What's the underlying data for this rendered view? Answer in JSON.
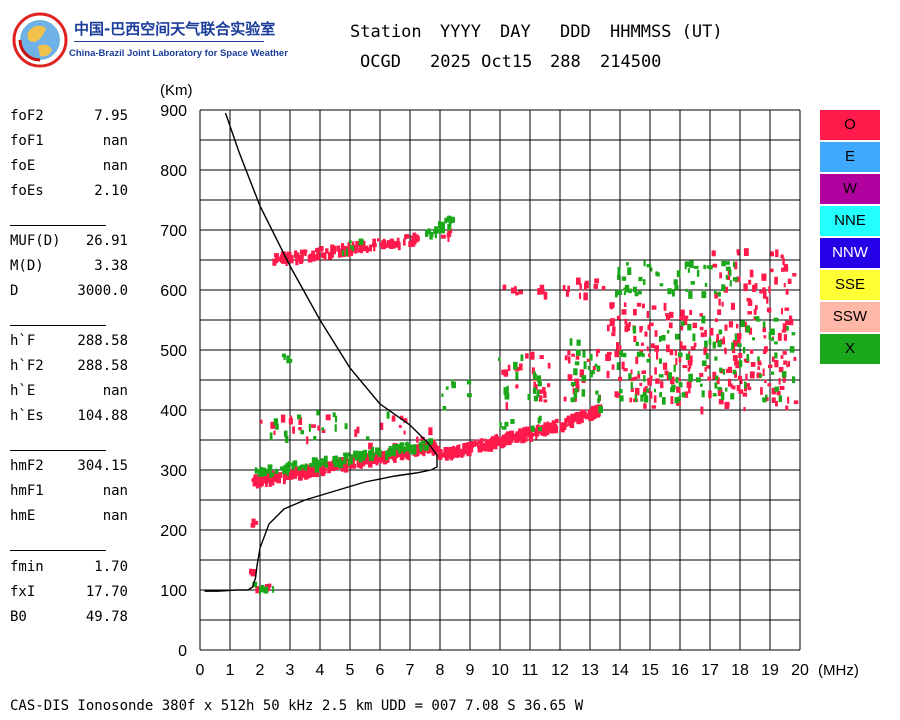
{
  "logo": {
    "cn": "中国-巴西空间天气联合实验室",
    "en": "China-Brazil Joint Laboratory for Space Weather"
  },
  "header": {
    "line1": [
      "Station",
      "YYYY",
      "DAY",
      "DDD",
      "HHMMSS (UT)"
    ],
    "line2": [
      "OCGD",
      "2025 Oct15",
      "288",
      "214500"
    ]
  },
  "parameters": {
    "group1": [
      {
        "label": "foF2",
        "value": "7.95"
      },
      {
        "label": "foF1",
        "value": "nan"
      },
      {
        "label": "foE",
        "value": "nan"
      },
      {
        "label": "foEs",
        "value": "2.10"
      }
    ],
    "group2": [
      {
        "label": "MUF(D)",
        "value": "26.91"
      },
      {
        "label": "M(D)",
        "value": "3.38"
      },
      {
        "label": "D",
        "value": "3000.0"
      }
    ],
    "group3": [
      {
        "label": "h`F",
        "value": "288.58"
      },
      {
        "label": "h`F2",
        "value": "288.58"
      },
      {
        "label": "h`E",
        "value": "nan"
      },
      {
        "label": "h`Es",
        "value": "104.88"
      }
    ],
    "group4": [
      {
        "label": "hmF2",
        "value": "304.15"
      },
      {
        "label": "hmF1",
        "value": "nan"
      },
      {
        "label": "hmE",
        "value": "nan"
      }
    ],
    "group5": [
      {
        "label": "fmin",
        "value": "1.70"
      },
      {
        "label": "fxI",
        "value": "17.70"
      },
      {
        "label": "B0",
        "value": "49.78"
      }
    ]
  },
  "legend": [
    {
      "label": "O",
      "color": "#ff1a4b"
    },
    {
      "label": "E",
      "color": "#3fa8ff"
    },
    {
      "label": "W",
      "color": "#b0009e"
    },
    {
      "label": "NNE",
      "color": "#22ffff"
    },
    {
      "label": "NNW",
      "color": "#2400e6"
    },
    {
      "label": "SSE",
      "color": "#ffff33"
    },
    {
      "label": "SSW",
      "color": "#ffb8a8"
    },
    {
      "label": "X",
      "color": "#1aa81a"
    }
  ],
  "footer": "CAS-DIS Ionosonde 380f x 512h 50 kHz 2.5 km UDD = 007 7.08 S 36.65 W",
  "chart_data": {
    "type": "scatter",
    "title": "",
    "xlabel": "(MHz)",
    "ylabel": "(Km)",
    "xlim": [
      0,
      20
    ],
    "ylim": [
      0,
      900
    ],
    "xticks": [
      0,
      1,
      2,
      3,
      4,
      5,
      6,
      7,
      8,
      9,
      10,
      11,
      12,
      13,
      14,
      15,
      16,
      17,
      18,
      19,
      20
    ],
    "yticks": [
      0,
      100,
      200,
      300,
      400,
      500,
      600,
      700,
      800,
      900
    ],
    "grid": true,
    "legend_position": "right",
    "colors": {
      "O": "#ff1a4b",
      "X": "#1aa81a"
    },
    "profile": {
      "name": "",
      "x": [
        0.15,
        0.6,
        1.2,
        1.6,
        1.75,
        1.85,
        1.9,
        2.0,
        2.3,
        2.8,
        3.5,
        4.5,
        5.5,
        6.5,
        7.2,
        7.7,
        7.9,
        7.9,
        7.6,
        7.0,
        6.0,
        5.0,
        4.0,
        3.0,
        2.0,
        1.3,
        0.85
      ],
      "y": [
        98,
        98,
        100,
        100,
        105,
        120,
        140,
        170,
        210,
        235,
        250,
        265,
        280,
        290,
        295,
        300,
        305,
        325,
        345,
        375,
        410,
        470,
        550,
        640,
        740,
        830,
        895
      ]
    },
    "series": [
      {
        "name": "O",
        "clusters": [
          {
            "x": [
              1.7,
              2.4
            ],
            "y": [
              105,
              112
            ],
            "density": 0.7
          },
          {
            "x": [
              1.6,
              1.9
            ],
            "y": [
              130,
              138
            ],
            "density": 0.7
          },
          {
            "x": [
              1.6,
              1.8
            ],
            "y": [
              210,
              220
            ],
            "density": 0.6
          },
          {
            "x": [
              1.7,
              7.9
            ],
            "y": [
              285,
              345
            ],
            "trend": true,
            "density": 0.9
          },
          {
            "x": [
              7.9,
              11.6
            ],
            "y": [
              328,
              375
            ],
            "trend": true,
            "density": 0.9
          },
          {
            "x": [
              11.6,
              13.3
            ],
            "y": [
              375,
              405
            ],
            "trend": true,
            "density": 0.8
          },
          {
            "x": [
              2.4,
              7.3
            ],
            "y": [
              655,
              690
            ],
            "trend": true,
            "density": 0.45
          },
          {
            "x": [
              2.0,
              4.2
            ],
            "y": [
              355,
              395
            ],
            "density": 0.25
          },
          {
            "x": [
              5.0,
              7.7
            ],
            "y": [
              345,
              400
            ],
            "density": 0.15
          },
          {
            "x": [
              10.0,
              11.5
            ],
            "y": [
              590,
              610
            ],
            "density": 0.5
          },
          {
            "x": [
              10.0,
              11.6
            ],
            "y": [
              395,
              500
            ],
            "density": 0.22
          },
          {
            "x": [
              12.0,
              13.5
            ],
            "y": [
              595,
              625
            ],
            "density": 0.45
          },
          {
            "x": [
              12.0,
              13.3
            ],
            "y": [
              420,
              505
            ],
            "density": 0.3
          },
          {
            "x": [
              13.5,
              19.8
            ],
            "y": [
              405,
              580
            ],
            "density": 0.4
          },
          {
            "x": [
              17.0,
              19.8
            ],
            "y": [
              580,
              670
            ],
            "density": 0.3
          },
          {
            "x": [
              8.0,
              8.4
            ],
            "y": [
              690,
              712
            ],
            "density": 0.2
          }
        ]
      },
      {
        "name": "X",
        "clusters": [
          {
            "x": [
              1.7,
              2.5
            ],
            "y": [
              105,
              114
            ],
            "density": 0.55
          },
          {
            "x": [
              1.8,
              7.7
            ],
            "y": [
              298,
              348
            ],
            "trend": true,
            "density": 0.35
          },
          {
            "x": [
              2.3,
              6.3
            ],
            "y": [
              355,
              400
            ],
            "density": 0.15
          },
          {
            "x": [
              2.7,
              3.2
            ],
            "y": [
              485,
              495
            ],
            "density": 0.4
          },
          {
            "x": [
              4.6,
              5.3
            ],
            "y": [
              660,
              690
            ],
            "density": 0.3
          },
          {
            "x": [
              7.5,
              8.4
            ],
            "y": [
              695,
              722
            ],
            "trend": true,
            "density": 0.5
          },
          {
            "x": [
              9.8,
              11.4
            ],
            "y": [
              370,
              500
            ],
            "density": 0.2
          },
          {
            "x": [
              12.2,
              13.3
            ],
            "y": [
              405,
              520
            ],
            "density": 0.3
          },
          {
            "x": [
              13.8,
              17.8
            ],
            "y": [
              595,
              650
            ],
            "density": 0.45
          },
          {
            "x": [
              13.8,
              19.8
            ],
            "y": [
              420,
              560
            ],
            "density": 0.22
          },
          {
            "x": [
              8.0,
              9.2
            ],
            "y": [
              405,
              455
            ],
            "density": 0.12
          }
        ]
      }
    ]
  }
}
